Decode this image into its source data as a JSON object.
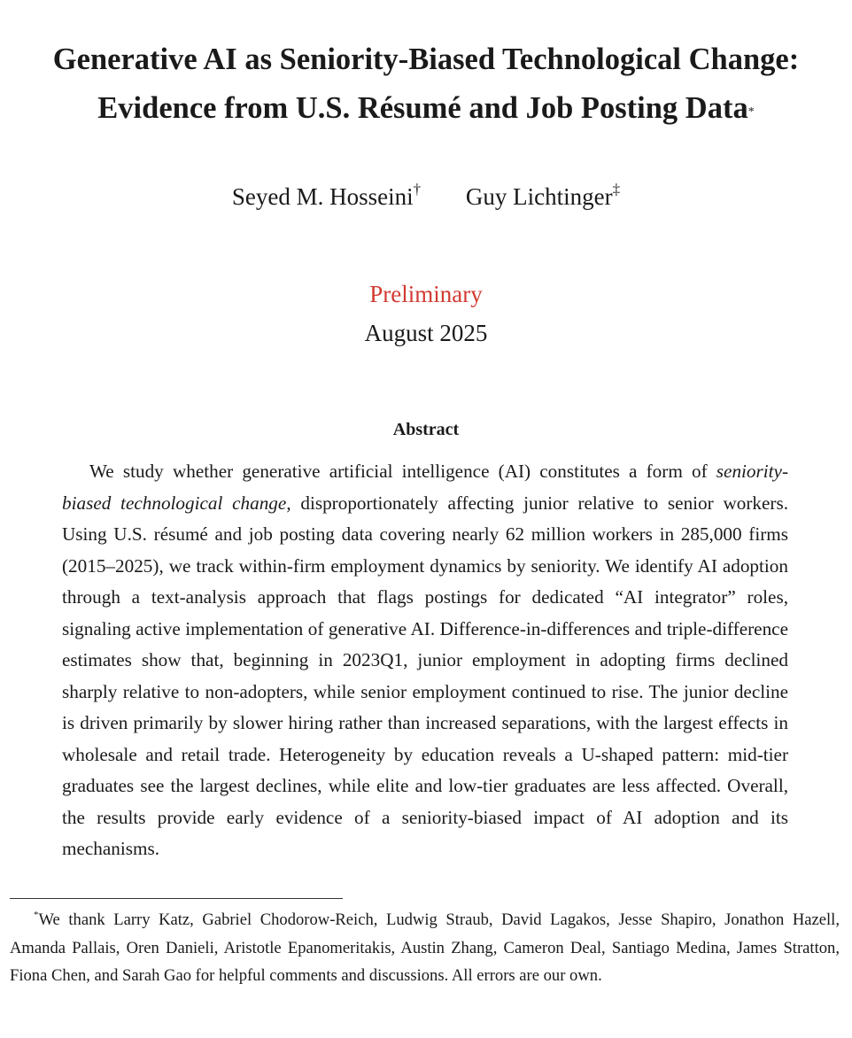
{
  "paper": {
    "title_line1": "Generative AI as Seniority-Biased Technological Change:",
    "title_line2": "Evidence from U.S. Résumé and Job Posting Data",
    "title_mark": "*",
    "authors": [
      {
        "name": "Seyed M. Hosseini",
        "mark": "†"
      },
      {
        "name": "Guy Lichtinger",
        "mark": "‡"
      }
    ],
    "status": "Preliminary",
    "date": "August 2025"
  },
  "abstract": {
    "heading": "Abstract",
    "part1": "We study whether generative artificial intelligence (AI) constitutes a form of ",
    "emphasis": "seniority-biased technological change",
    "part2": ", disproportionately affecting junior relative to senior workers. Using U.S. résumé and job posting data covering nearly 62 million workers in 285,000 firms (2015–2025), we track within-firm employment dynamics by seniority. We identify AI adoption through a text-analysis approach that flags postings for dedicated “AI integrator” roles, signaling active implementation of generative AI. Difference-in-differences and triple-difference estimates show that, beginning in 2023Q1, junior employment in adopting firms declined sharply relative to non-adopters, while senior employment continued to rise. The junior decline is driven primarily by slower hiring rather than increased separations, with the largest effects in wholesale and retail trade. Heterogeneity by education reveals a U-shaped pattern: mid-tier graduates see the largest declines, while elite and low-tier graduates are less affected. Overall, the results provide early evidence of a seniority-biased impact of AI adoption and its mechanisms."
  },
  "footnote": {
    "mark": "*",
    "text": "We thank Larry Katz, Gabriel Chodorow-Reich, Ludwig Straub, David Lagakos, Jesse Shapiro, Jonathon Hazell, Amanda Pallais, Oren Danieli, Aristotle Epanomeritakis, Austin Zhang, Cameron Deal, Santiago Medina, James Stratton, Fiona Chen, and Sarah Gao for helpful comments and discussions. All errors are our own."
  }
}
